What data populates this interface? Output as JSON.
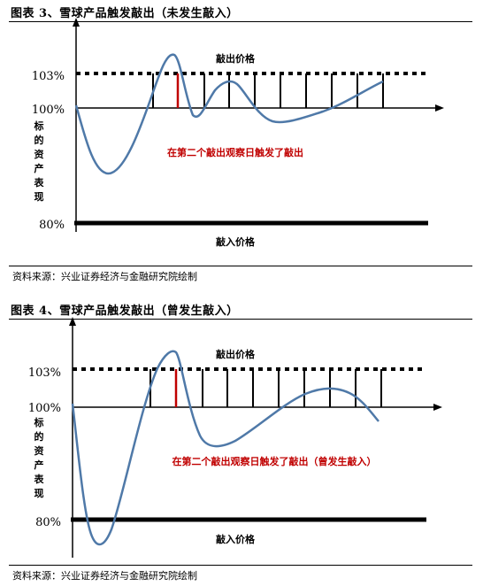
{
  "figures": [
    {
      "title": "图表 3、雪球产品触发敲出（未发生敲入）",
      "labels": {
        "y103": "103%",
        "y100": "100%",
        "y80": "80%",
        "knockout": "敲出价格",
        "knockin": "敲入价格",
        "annotation": "在第二个敲出观察日触发了敲出",
        "yaxis_chars": [
          "标",
          "的",
          "资",
          "产",
          "表",
          "现"
        ]
      },
      "source": "资料来源：兴业证券经济与金融研究院绘制"
    },
    {
      "title": "图表 4、雪球产品触发敲出（曾发生敲入）",
      "labels": {
        "y103": "103%",
        "y100": "100%",
        "y80": "80%",
        "knockout": "敲出价格",
        "knockin": "敲入价格",
        "annotation": "在第二个敲出观察日触发了敲出（曾发生敲入）",
        "yaxis_chars": [
          "标",
          "的",
          "资",
          "产",
          "表",
          "现"
        ]
      },
      "source": "资料来源：兴业证券经济与金融研究院绘制"
    }
  ],
  "colors": {
    "curve": "#4f79a8",
    "highlight": "#c00000",
    "annotation": "#c00000",
    "lines": "#000000"
  }
}
